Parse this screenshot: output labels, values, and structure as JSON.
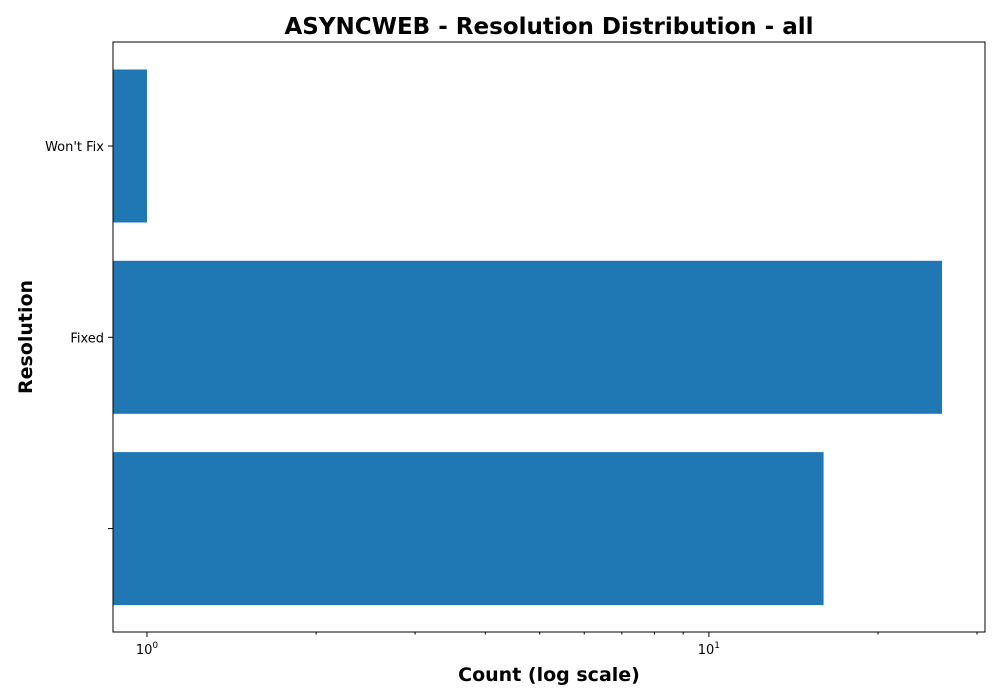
{
  "chart_data": {
    "type": "bar",
    "orientation": "horizontal",
    "title": "ASYNCWEB - Resolution Distribution - all",
    "xlabel": "Count (log scale)",
    "ylabel": "Resolution",
    "x_scale": "log",
    "xlim": [
      0.87,
      31
    ],
    "x_ticks": [
      {
        "value": 1,
        "base": "10",
        "exp": "0"
      },
      {
        "value": 10,
        "base": "10",
        "exp": "1"
      }
    ],
    "categories": [
      "Won't Fix",
      "Fixed",
      ""
    ],
    "values": [
      1,
      26,
      16
    ],
    "bar_color": "#1f77b4",
    "grid": false,
    "legend": "none"
  }
}
